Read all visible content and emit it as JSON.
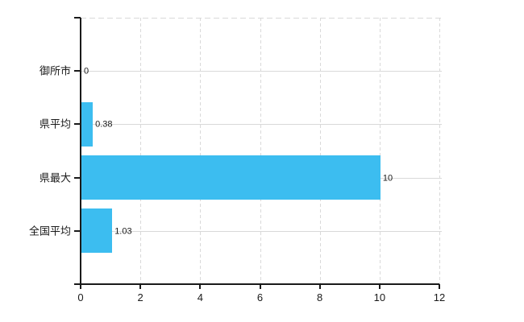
{
  "chart_data": {
    "type": "bar",
    "orientation": "horizontal",
    "title": "",
    "xlabel": "",
    "ylabel": "",
    "categories": [
      "御所市",
      "県平均",
      "県最大",
      "全国平均"
    ],
    "values": [
      0,
      0.38,
      10,
      1.03
    ],
    "value_labels": [
      "0",
      "0.38",
      "10",
      "1.03"
    ],
    "xlim": [
      0,
      12
    ],
    "xticks": [
      0,
      2,
      4,
      6,
      8,
      10,
      12
    ],
    "xtick_labels": [
      "0",
      "2",
      "4",
      "6",
      "8",
      "10",
      "12"
    ],
    "grid": "on",
    "grid_style": "vertical dashed, horizontal solid at category rows, dashed top border",
    "legend": "none"
  },
  "colors": {
    "bar": "#3cbdf0",
    "grid": "#d9d9d9",
    "axis": "#1a1a1a",
    "text": "#1a1a1a",
    "background": "#ffffff"
  }
}
